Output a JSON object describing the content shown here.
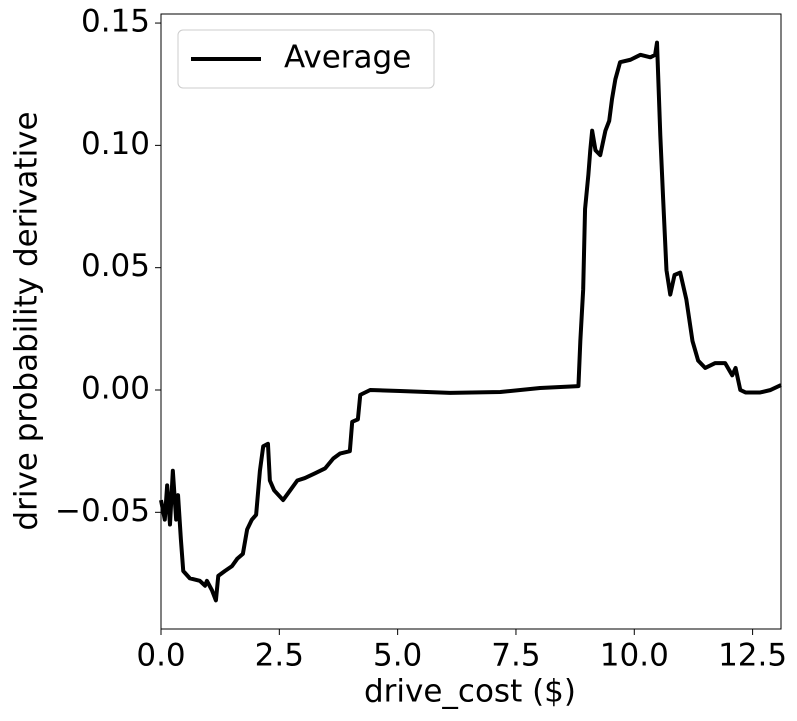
{
  "chart_data": {
    "type": "line",
    "xlabel": "drive_cost ($)",
    "ylabel": "drive probability derivative",
    "x": [
      0,
      0.08,
      0.13,
      0.19,
      0.25,
      0.32,
      0.36,
      0.42,
      0.47,
      0.61,
      0.82,
      0.93,
      0.97,
      1.08,
      1.16,
      1.21,
      1.35,
      1.5,
      1.61,
      1.73,
      1.82,
      1.92,
      2.01,
      2.09,
      2.16,
      2.26,
      2.3,
      2.39,
      2.58,
      2.73,
      2.88,
      3.04,
      3.26,
      3.47,
      3.64,
      3.78,
      3.99,
      4.04,
      4.16,
      4.21,
      4.42,
      5.05,
      6.11,
      7.17,
      8.01,
      8.82,
      8.86,
      8.92,
      8.96,
      9.03,
      9.07,
      9.11,
      9.18,
      9.28,
      9.39,
      9.47,
      9.53,
      9.6,
      9.7,
      9.92,
      10.13,
      10.34,
      10.44,
      10.48,
      10.55,
      10.61,
      10.68,
      10.76,
      10.85,
      10.97,
      11.1,
      11.23,
      11.35,
      11.5,
      11.71,
      11.92,
      12.07,
      12.14,
      12.24,
      12.35,
      12.66,
      12.88,
      13.1
    ],
    "series": [
      {
        "name": "Average",
        "color": "#000000",
        "values": [
          -0.045,
          -0.053,
          -0.039,
          -0.055,
          -0.033,
          -0.053,
          -0.043,
          -0.061,
          -0.074,
          -0.077,
          -0.078,
          -0.08,
          -0.078,
          -0.082,
          -0.086,
          -0.076,
          -0.074,
          -0.072,
          -0.069,
          -0.067,
          -0.057,
          -0.053,
          -0.051,
          -0.033,
          -0.023,
          -0.022,
          -0.037,
          -0.041,
          -0.045,
          -0.041,
          -0.037,
          -0.036,
          -0.034,
          -0.032,
          -0.028,
          -0.026,
          -0.025,
          -0.013,
          -0.012,
          -0.002,
          0.0,
          -0.0004,
          -0.0012,
          -0.0008,
          0.0008,
          0.0016,
          0.02,
          0.041,
          0.074,
          0.088,
          0.098,
          0.106,
          0.098,
          0.096,
          0.106,
          0.11,
          0.119,
          0.127,
          0.134,
          0.135,
          0.137,
          0.136,
          0.137,
          0.142,
          0.104,
          0.078,
          0.049,
          0.039,
          0.047,
          0.048,
          0.037,
          0.02,
          0.012,
          0.009,
          0.011,
          0.011,
          0.006,
          0.009,
          0.0,
          -0.001,
          -0.001,
          0.0,
          0.002
        ]
      }
    ],
    "xlim": [
      0,
      13.1
    ],
    "ylim": [
      -0.0977,
      0.1537
    ],
    "xticks": [
      {
        "value": 0,
        "label": "0.0"
      },
      2.5,
      {
        "value": 5,
        "label": "5.0"
      },
      7.5,
      {
        "value": 10,
        "label": "10.0"
      },
      12.5
    ],
    "yticks": [
      {
        "value": -0.05,
        "label": "−0.05"
      },
      {
        "value": 0,
        "label": "0.00"
      },
      0.05,
      {
        "value": 0.1,
        "label": "0.10"
      },
      0.15
    ],
    "legend": "upper left",
    "grid": false
  }
}
